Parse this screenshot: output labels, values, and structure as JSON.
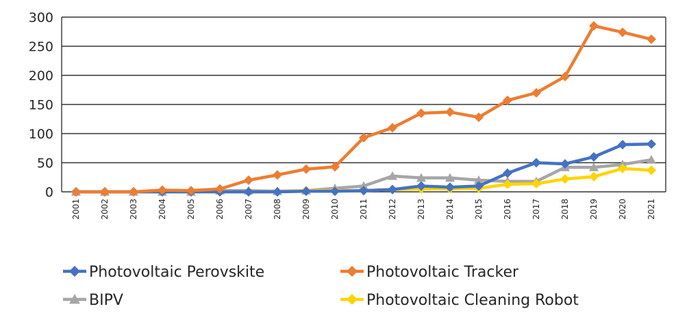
{
  "chart_data": {
    "type": "line",
    "title": "",
    "xlabel": "",
    "ylabel": "",
    "ylim": [
      0,
      300
    ],
    "yticks": [
      0,
      50,
      100,
      150,
      200,
      250,
      300
    ],
    "categories": [
      "2001",
      "2002",
      "2003",
      "2004",
      "2005",
      "2006",
      "2007",
      "2008",
      "2009",
      "2010",
      "2011",
      "2012",
      "2013",
      "2014",
      "2015",
      "2016",
      "2017",
      "2018",
      "2019",
      "2020",
      "2021"
    ],
    "legend_position": "bottom",
    "series": [
      {
        "name": "BIPV",
        "color": "#a6a6a6",
        "marker": "triangle",
        "values": [
          0,
          0,
          0,
          0,
          0,
          2,
          2,
          1,
          2,
          6,
          10,
          27,
          24,
          24,
          20,
          18,
          18,
          42,
          42,
          47,
          55
        ]
      },
      {
        "name": "Photovoltaic Cleaning Robot",
        "color": "#ffd400",
        "marker": "diamond",
        "values": [
          0,
          0,
          0,
          0,
          0,
          0,
          0,
          0,
          2,
          2,
          2,
          4,
          5,
          5,
          6,
          13,
          14,
          22,
          26,
          40,
          37
        ]
      },
      {
        "name": "Photovoltaic Perovskite",
        "color": "#4472c4",
        "marker": "diamond",
        "values": [
          0,
          0,
          0,
          0,
          0,
          0,
          0,
          0,
          1,
          1,
          2,
          4,
          10,
          8,
          10,
          32,
          50,
          48,
          60,
          81,
          82
        ]
      },
      {
        "name": "Photovoltaic Tracker",
        "color": "#ed7d31",
        "marker": "diamond",
        "values": [
          0,
          0,
          0,
          3,
          2,
          5,
          20,
          29,
          39,
          43,
          93,
          110,
          135,
          137,
          128,
          157,
          170,
          198,
          285,
          274,
          262
        ]
      }
    ],
    "legend_order": [
      "Photovoltaic Perovskite",
      "Photovoltaic Tracker",
      "BIPV",
      "Photovoltaic Cleaning Robot"
    ]
  }
}
